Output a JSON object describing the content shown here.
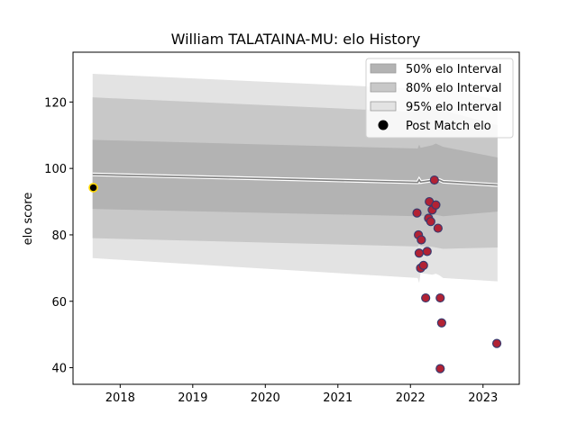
{
  "chart_data": {
    "type": "scatter",
    "title": "William TALATAINA-MU: elo History",
    "xlabel": "",
    "ylabel": "elo score",
    "xlim": [
      2017.35,
      2023.5
    ],
    "ylim": [
      35,
      135
    ],
    "x_ticks": [
      2018,
      2019,
      2020,
      2021,
      2022,
      2023
    ],
    "x_tick_labels": [
      "2018",
      "2019",
      "2020",
      "2021",
      "2022",
      "2023"
    ],
    "y_ticks": [
      40,
      60,
      80,
      100,
      120
    ],
    "y_tick_labels": [
      "40",
      "60",
      "80",
      "100",
      "120"
    ],
    "grid": false,
    "legend_position": "top-right",
    "colors": {
      "band_50": "#b3b3b3",
      "band_80": "#c8c8c8",
      "band_95": "#e3e3e3",
      "mean_line": "#808080",
      "point_fill": "#b22234",
      "point_edge": "#3a3a6e",
      "first_point_edge": "#ffd700",
      "first_point_fill": "#000000"
    },
    "legend": [
      {
        "label": "50% elo Interval",
        "swatch": "band_50"
      },
      {
        "label": "80% elo Interval",
        "swatch": "band_80"
      },
      {
        "label": "95% elo Interval",
        "swatch": "band_95"
      },
      {
        "label": "Post Match elo",
        "swatch": "point"
      }
    ],
    "bands": {
      "x": [
        2017.62,
        2022.1,
        2022.12,
        2022.14,
        2022.3,
        2022.35,
        2022.4,
        2022.45,
        2023.2
      ],
      "mean": [
        98.2,
        95.8,
        96.6,
        95.9,
        96.4,
        96.8,
        96.5,
        96.0,
        95.0
      ],
      "p50_low": [
        87.8,
        85.6,
        86.0,
        85.7,
        85.8,
        86.0,
        85.8,
        85.6,
        87.0
      ],
      "p50_high": [
        108.6,
        106.0,
        107.2,
        106.2,
        107.0,
        107.5,
        107.0,
        106.5,
        103.3
      ],
      "p80_low": [
        79.0,
        76.5,
        77.0,
        76.6,
        76.4,
        76.2,
        76.0,
        75.8,
        76.2
      ],
      "p80_high": [
        121.4,
        117.0,
        118.0,
        117.2,
        118.0,
        118.5,
        118.0,
        117.5,
        113.0
      ],
      "p95_low": [
        73.0,
        67.0,
        65.5,
        68.5,
        68.0,
        68.3,
        67.8,
        67.0,
        66.0
      ],
      "p95_high": [
        128.5,
        124.0,
        124.5,
        124.0,
        124.5,
        125.0,
        124.8,
        124.5,
        120.5
      ]
    },
    "series": [
      {
        "name": "Post Match elo",
        "x": [
          2017.63,
          2022.09,
          2022.11,
          2022.12,
          2022.14,
          2022.15,
          2022.18,
          2022.21,
          2022.23,
          2022.25,
          2022.26,
          2022.28,
          2022.3,
          2022.33,
          2022.35,
          2022.38,
          2022.41,
          2022.43,
          2022.41,
          2023.19
        ],
        "y": [
          94.2,
          86.6,
          80.0,
          74.5,
          70.0,
          78.5,
          70.8,
          61.0,
          75.0,
          85.0,
          90.0,
          84.0,
          87.5,
          96.5,
          89.0,
          82.0,
          61.0,
          53.5,
          39.7,
          47.3
        ]
      }
    ]
  }
}
